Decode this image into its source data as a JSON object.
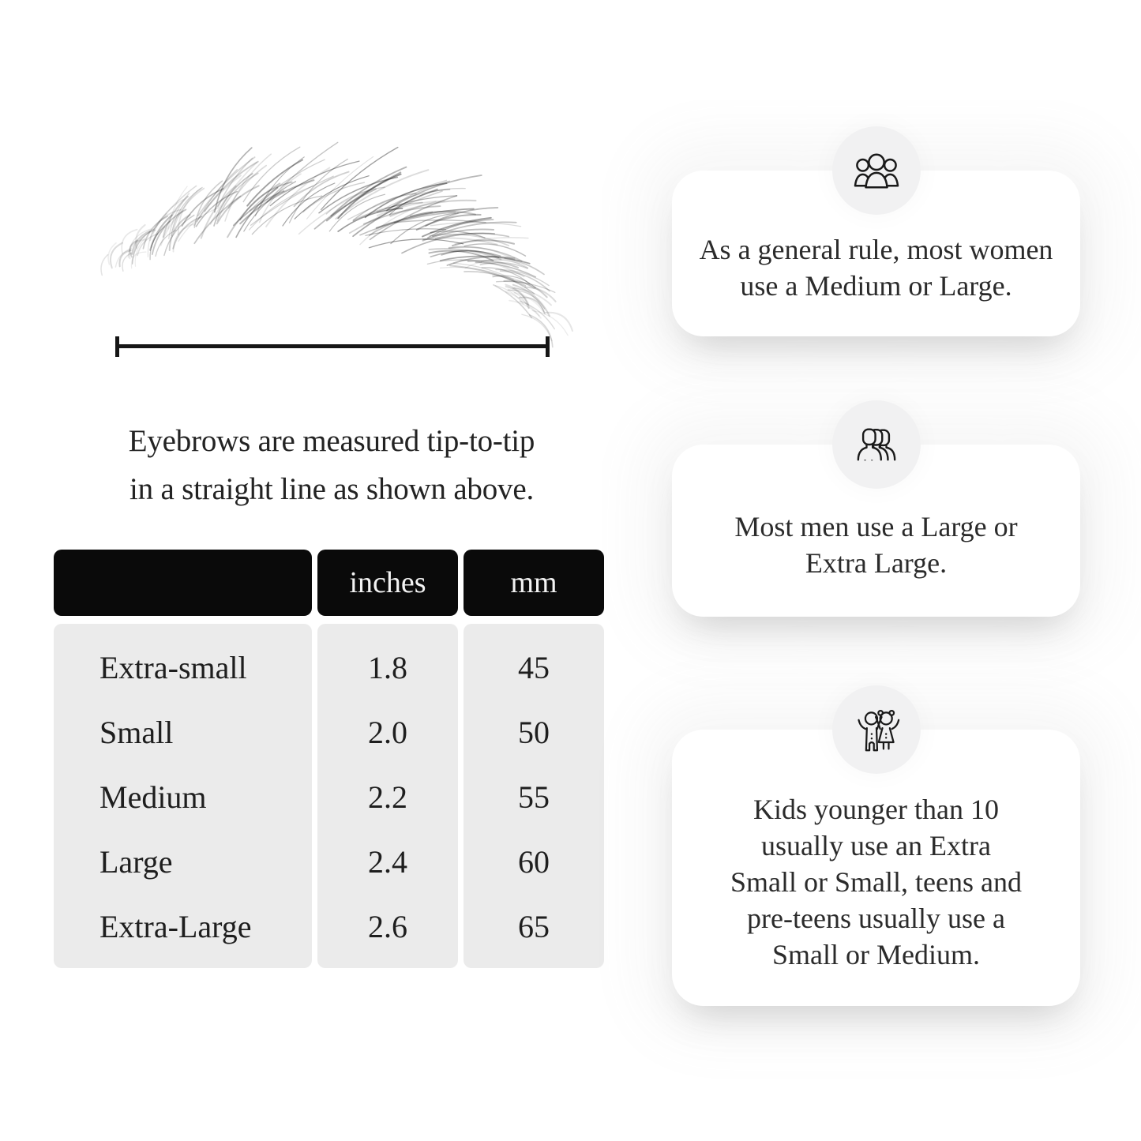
{
  "measurement": {
    "caption": "Eyebrows are measured tip-to-tip\nin a straight line as shown above."
  },
  "size_table": {
    "columns": [
      "",
      "inches",
      "mm"
    ],
    "rows": [
      {
        "size": "Extra-small",
        "inches": "1.8",
        "mm": "45"
      },
      {
        "size": "Small",
        "inches": "2.0",
        "mm": "50"
      },
      {
        "size": "Medium",
        "inches": "2.2",
        "mm": "55"
      },
      {
        "size": "Large",
        "inches": "2.4",
        "mm": "60"
      },
      {
        "size": "Extra-Large",
        "inches": "2.6",
        "mm": "65"
      }
    ]
  },
  "tips": [
    {
      "icon": "women-group-icon",
      "text": "As a general rule, most women\nuse a Medium or Large."
    },
    {
      "icon": "men-group-icon",
      "text": "Most men use a Large or\nExtra Large."
    },
    {
      "icon": "kids-icon",
      "text": "Kids younger than 10\nusually use an Extra\nSmall or Small, teens and\npre-teens usually use a\nSmall or Medium."
    }
  ],
  "colors": {
    "table_header_bg": "#0a0a0a",
    "table_body_bg": "#ebebeb",
    "icon_circle_bg": "#f1f1f2",
    "ink": "#1a1a1a"
  }
}
